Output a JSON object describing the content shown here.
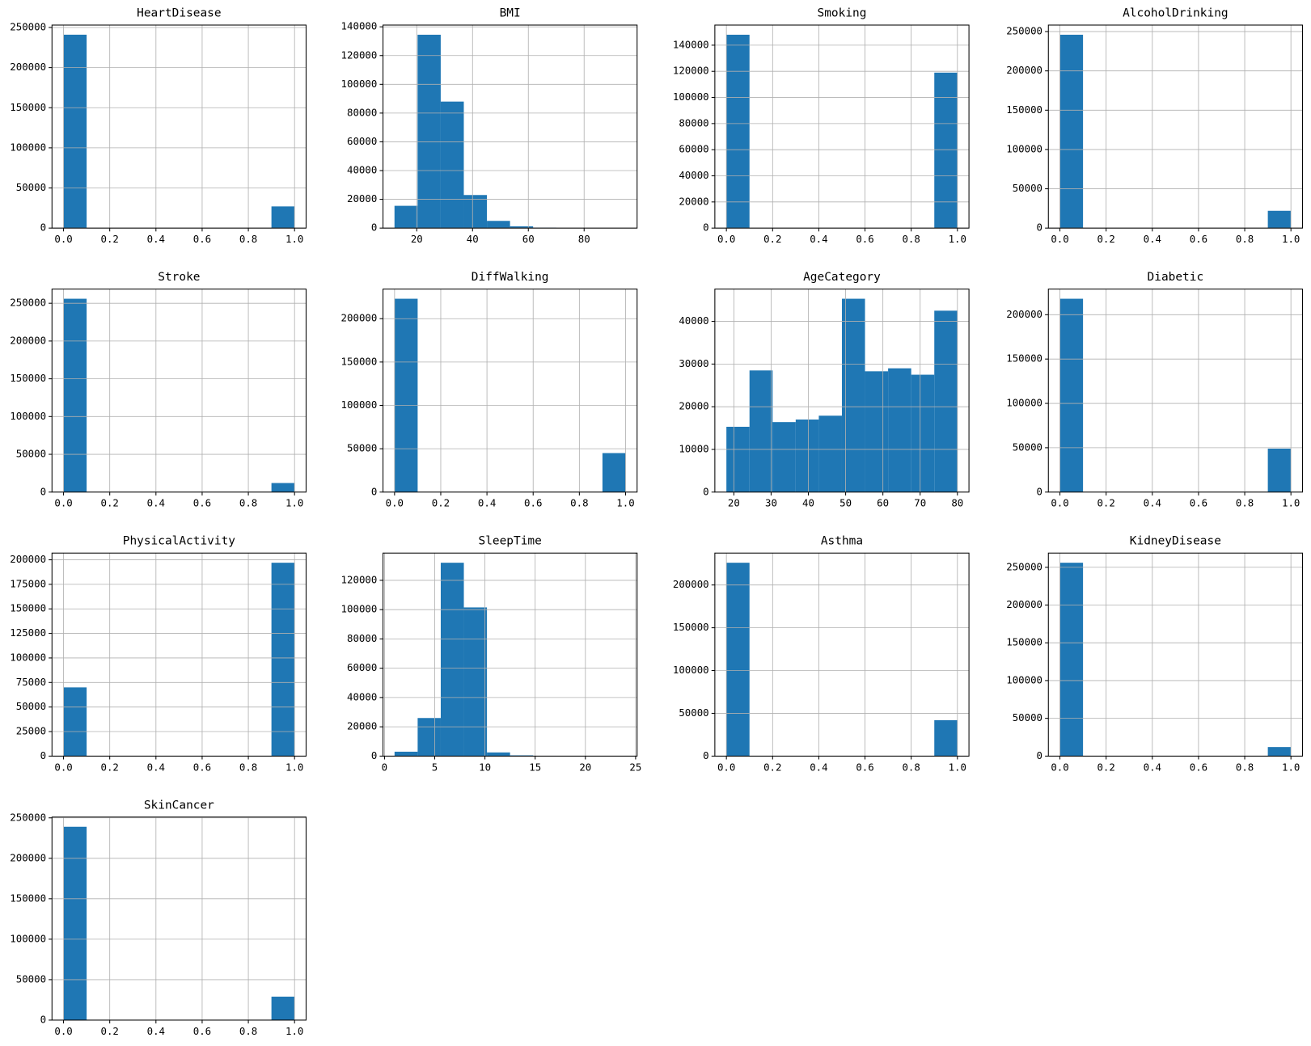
{
  "chart_data": [
    {
      "type": "histogram",
      "title": "HeartDisease",
      "bins": [
        0,
        0.1,
        0.2,
        0.3,
        0.4,
        0.5,
        0.6,
        0.7,
        0.8,
        0.9,
        1.0
      ],
      "values": [
        241000,
        0,
        0,
        0,
        0,
        0,
        0,
        0,
        0,
        27000
      ],
      "color": "#1f77b4",
      "grid": true,
      "xlim": [
        -0.05,
        1.05
      ],
      "ylim": [
        0,
        253000
      ],
      "xticks": [
        {
          "value": 0,
          "label": "0.0"
        },
        0.2,
        0.4,
        0.6,
        0.8,
        {
          "value": 1,
          "label": "1.0"
        }
      ],
      "yticks": [
        0,
        50000,
        100000,
        150000,
        200000,
        250000
      ]
    },
    {
      "type": "histogram",
      "title": "BMI",
      "bins": [
        12.02,
        20.3,
        28.59,
        36.87,
        45.16,
        53.44,
        61.72,
        70.01,
        78.29,
        86.57,
        94.85
      ],
      "values": [
        15500,
        134500,
        88000,
        23000,
        5000,
        1200,
        300,
        100,
        30,
        10
      ],
      "color": "#1f77b4",
      "grid": true,
      "xlim": [
        7.9,
        99
      ],
      "ylim": [
        0,
        141225
      ],
      "xticks": [
        20,
        40,
        60,
        80
      ],
      "yticks": [
        0,
        20000,
        40000,
        60000,
        80000,
        100000,
        120000,
        140000
      ]
    },
    {
      "type": "histogram",
      "title": "Smoking",
      "bins": [
        0,
        0.1,
        0.2,
        0.3,
        0.4,
        0.5,
        0.6,
        0.7,
        0.8,
        0.9,
        1.0
      ],
      "values": [
        148000,
        0,
        0,
        0,
        0,
        0,
        0,
        0,
        0,
        119000
      ],
      "color": "#1f77b4",
      "grid": true,
      "xlim": [
        -0.05,
        1.05
      ],
      "ylim": [
        0,
        155400
      ],
      "xticks": [
        {
          "value": 0,
          "label": "0.0"
        },
        0.2,
        0.4,
        0.6,
        0.8,
        {
          "value": 1,
          "label": "1.0"
        }
      ],
      "yticks": [
        0,
        20000,
        40000,
        60000,
        80000,
        100000,
        120000,
        140000
      ]
    },
    {
      "type": "histogram",
      "title": "AlcoholDrinking",
      "bins": [
        0,
        0.1,
        0.2,
        0.3,
        0.4,
        0.5,
        0.6,
        0.7,
        0.8,
        0.9,
        1.0
      ],
      "values": [
        246000,
        0,
        0,
        0,
        0,
        0,
        0,
        0,
        0,
        22000
      ],
      "color": "#1f77b4",
      "grid": true,
      "xlim": [
        -0.05,
        1.05
      ],
      "ylim": [
        0,
        258300
      ],
      "xticks": [
        {
          "value": 0,
          "label": "0.0"
        },
        0.2,
        0.4,
        0.6,
        0.8,
        {
          "value": 1,
          "label": "1.0"
        }
      ],
      "yticks": [
        0,
        50000,
        100000,
        150000,
        200000,
        250000
      ]
    },
    {
      "type": "histogram",
      "title": "Stroke",
      "bins": [
        0,
        0.1,
        0.2,
        0.3,
        0.4,
        0.5,
        0.6,
        0.7,
        0.8,
        0.9,
        1.0
      ],
      "values": [
        256000,
        0,
        0,
        0,
        0,
        0,
        0,
        0,
        0,
        12000
      ],
      "color": "#1f77b4",
      "grid": true,
      "xlim": [
        -0.05,
        1.05
      ],
      "ylim": [
        0,
        268800
      ],
      "xticks": [
        {
          "value": 0,
          "label": "0.0"
        },
        0.2,
        0.4,
        0.6,
        0.8,
        {
          "value": 1,
          "label": "1.0"
        }
      ],
      "yticks": [
        0,
        50000,
        100000,
        150000,
        200000,
        250000
      ]
    },
    {
      "type": "histogram",
      "title": "DiffWalking",
      "bins": [
        0,
        0.1,
        0.2,
        0.3,
        0.4,
        0.5,
        0.6,
        0.7,
        0.8,
        0.9,
        1.0
      ],
      "values": [
        223000,
        0,
        0,
        0,
        0,
        0,
        0,
        0,
        0,
        45000
      ],
      "color": "#1f77b4",
      "grid": true,
      "xlim": [
        -0.05,
        1.05
      ],
      "ylim": [
        0,
        234150
      ],
      "xticks": [
        {
          "value": 0,
          "label": "0.0"
        },
        0.2,
        0.4,
        0.6,
        0.8,
        {
          "value": 1,
          "label": "1.0"
        }
      ],
      "yticks": [
        0,
        50000,
        100000,
        150000,
        200000
      ]
    },
    {
      "type": "histogram",
      "title": "AgeCategory",
      "bins": [
        18,
        24.2,
        30.4,
        36.6,
        42.8,
        49,
        55.2,
        61.4,
        67.6,
        73.8,
        80
      ],
      "values": [
        15300,
        28500,
        16400,
        17000,
        17900,
        45300,
        28300,
        29000,
        27500,
        42500
      ],
      "color": "#1f77b4",
      "grid": true,
      "xlim": [
        14.9,
        83.1
      ],
      "ylim": [
        0,
        47565
      ],
      "xticks": [
        20,
        30,
        40,
        50,
        60,
        70,
        80
      ],
      "yticks": [
        0,
        10000,
        20000,
        30000,
        40000
      ]
    },
    {
      "type": "histogram",
      "title": "Diabetic",
      "bins": [
        0,
        0.1,
        0.2,
        0.3,
        0.4,
        0.5,
        0.6,
        0.7,
        0.8,
        0.9,
        1.0
      ],
      "values": [
        218000,
        0,
        0,
        0,
        0,
        0,
        0,
        0,
        0,
        49000
      ],
      "color": "#1f77b4",
      "grid": true,
      "xlim": [
        -0.05,
        1.05
      ],
      "ylim": [
        0,
        228900
      ],
      "xticks": [
        {
          "value": 0,
          "label": "0.0"
        },
        0.2,
        0.4,
        0.6,
        0.8,
        {
          "value": 1,
          "label": "1.0"
        }
      ],
      "yticks": [
        0,
        50000,
        100000,
        150000,
        200000
      ]
    },
    {
      "type": "histogram",
      "title": "PhysicalActivity",
      "bins": [
        0,
        0.1,
        0.2,
        0.3,
        0.4,
        0.5,
        0.6,
        0.7,
        0.8,
        0.9,
        1.0
      ],
      "values": [
        70000,
        0,
        0,
        0,
        0,
        0,
        0,
        0,
        0,
        197000
      ],
      "color": "#1f77b4",
      "grid": true,
      "xlim": [
        -0.05,
        1.05
      ],
      "ylim": [
        0,
        206850
      ],
      "xticks": [
        {
          "value": 0,
          "label": "0.0"
        },
        0.2,
        0.4,
        0.6,
        0.8,
        {
          "value": 1,
          "label": "1.0"
        }
      ],
      "yticks": [
        0,
        25000,
        50000,
        75000,
        100000,
        125000,
        150000,
        175000,
        200000
      ]
    },
    {
      "type": "histogram",
      "title": "SleepTime",
      "bins": [
        1,
        3.3,
        5.6,
        7.9,
        10.2,
        12.5,
        14.8,
        17.1,
        19.4,
        21.7,
        24
      ],
      "values": [
        3000,
        26000,
        132000,
        101500,
        2500,
        500,
        200,
        100,
        50,
        50
      ],
      "color": "#1f77b4",
      "grid": true,
      "xlim": [
        -0.15,
        25.15
      ],
      "ylim": [
        0,
        138600
      ],
      "xticks": [
        0,
        5,
        10,
        15,
        20,
        25
      ],
      "yticks": [
        0,
        20000,
        40000,
        60000,
        80000,
        100000,
        120000
      ]
    },
    {
      "type": "histogram",
      "title": "Asthma",
      "bins": [
        0,
        0.1,
        0.2,
        0.3,
        0.4,
        0.5,
        0.6,
        0.7,
        0.8,
        0.9,
        1.0
      ],
      "values": [
        226000,
        0,
        0,
        0,
        0,
        0,
        0,
        0,
        0,
        42000
      ],
      "color": "#1f77b4",
      "grid": true,
      "xlim": [
        -0.05,
        1.05
      ],
      "ylim": [
        0,
        237300
      ],
      "xticks": [
        {
          "value": 0,
          "label": "0.0"
        },
        0.2,
        0.4,
        0.6,
        0.8,
        {
          "value": 1,
          "label": "1.0"
        }
      ],
      "yticks": [
        0,
        50000,
        100000,
        150000,
        200000
      ]
    },
    {
      "type": "histogram",
      "title": "KidneyDisease",
      "bins": [
        0,
        0.1,
        0.2,
        0.3,
        0.4,
        0.5,
        0.6,
        0.7,
        0.8,
        0.9,
        1.0
      ],
      "values": [
        256000,
        0,
        0,
        0,
        0,
        0,
        0,
        0,
        0,
        12000
      ],
      "color": "#1f77b4",
      "grid": true,
      "xlim": [
        -0.05,
        1.05
      ],
      "ylim": [
        0,
        268800
      ],
      "xticks": [
        {
          "value": 0,
          "label": "0.0"
        },
        0.2,
        0.4,
        0.6,
        0.8,
        {
          "value": 1,
          "label": "1.0"
        }
      ],
      "yticks": [
        0,
        50000,
        100000,
        150000,
        200000,
        250000
      ]
    },
    {
      "type": "histogram",
      "title": "SkinCancer",
      "bins": [
        0,
        0.1,
        0.2,
        0.3,
        0.4,
        0.5,
        0.6,
        0.7,
        0.8,
        0.9,
        1.0
      ],
      "values": [
        239000,
        0,
        0,
        0,
        0,
        0,
        0,
        0,
        0,
        29000
      ],
      "color": "#1f77b4",
      "grid": true,
      "xlim": [
        -0.05,
        1.05
      ],
      "ylim": [
        0,
        250950
      ],
      "xticks": [
        {
          "value": 0,
          "label": "0.0"
        },
        0.2,
        0.4,
        0.6,
        0.8,
        {
          "value": 1,
          "label": "1.0"
        }
      ],
      "yticks": [
        0,
        50000,
        100000,
        150000,
        200000,
        250000
      ]
    }
  ]
}
